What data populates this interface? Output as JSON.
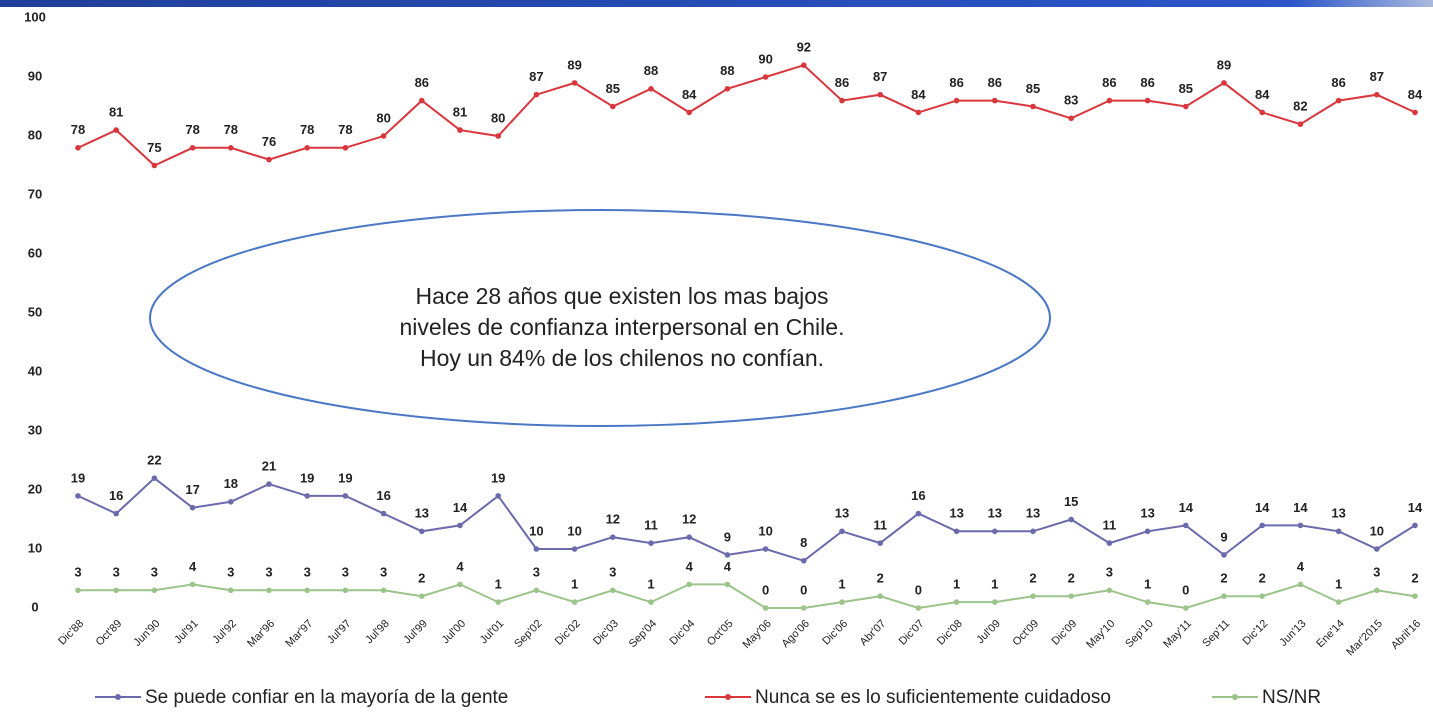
{
  "chart_data": {
    "type": "line",
    "categories": [
      "Dic'88",
      "Oct'89",
      "Jun'90",
      "Jul'91",
      "Jul'92",
      "Mar'96",
      "Mar'97",
      "Jul'97",
      "Jul'98",
      "Jul'99",
      "Jul'00",
      "Jul'01",
      "Sep'02",
      "Dic'02",
      "Dic'03",
      "Sep'04",
      "Dic'04",
      "Oct'05",
      "May'06",
      "Ago'06",
      "Dic'06",
      "Abr'07",
      "Dic'07",
      "Dic'08",
      "Jul'09",
      "Oct'09",
      "Dic'09",
      "May'10",
      "Sep'10",
      "May'11",
      "Sep'11",
      "Dic'12",
      "Jun'13",
      "Ene'14",
      "Mar'2015",
      "Abril'16"
    ],
    "series": [
      {
        "name": "Se puede confiar en  la mayoría de la gente",
        "color": "#6a6aac",
        "values": [
          19,
          16,
          22,
          17,
          18,
          21,
          19,
          19,
          16,
          13,
          14,
          19,
          10,
          10,
          12,
          11,
          12,
          9,
          10,
          8,
          13,
          11,
          16,
          13,
          13,
          13,
          15,
          11,
          13,
          14,
          9,
          14,
          14,
          13,
          10,
          14
        ]
      },
      {
        "name": "Nunca se es lo suficientemente cuidadoso",
        "color": "#d9363e",
        "values": [
          78,
          81,
          75,
          78,
          78,
          76,
          78,
          78,
          80,
          86,
          81,
          80,
          87,
          89,
          85,
          88,
          84,
          88,
          90,
          92,
          86,
          87,
          84,
          86,
          86,
          85,
          83,
          86,
          86,
          85,
          89,
          84,
          82,
          86,
          87,
          84
        ]
      },
      {
        "name": "NS/NR",
        "color": "#9bc48a",
        "values": [
          3,
          3,
          3,
          4,
          3,
          3,
          3,
          3,
          3,
          2,
          4,
          1,
          3,
          1,
          3,
          1,
          4,
          4,
          0,
          0,
          1,
          2,
          0,
          1,
          1,
          2,
          2,
          3,
          1,
          0,
          2,
          2,
          4,
          1,
          3,
          2
        ]
      }
    ],
    "ylim": [
      0,
      100
    ],
    "yticks": [
      0,
      10,
      20,
      30,
      40,
      50,
      60,
      70,
      80,
      90,
      100
    ],
    "annotation": [
      "Hace 28 años que existen los mas bajos",
      "niveles de confianza interpersonal en Chile.",
      "Hoy un 84% de los chilenos no confían."
    ],
    "legend": "bottom"
  }
}
